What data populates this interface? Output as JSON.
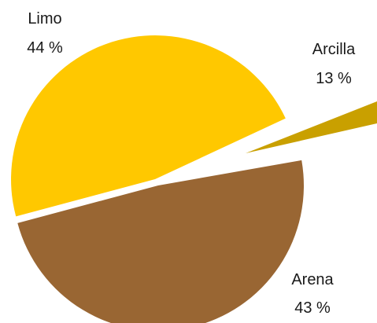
{
  "chart_data": {
    "type": "pie",
    "title": "",
    "categories": [
      "Limo",
      "Arcilla",
      "Arena"
    ],
    "values": [
      44,
      13,
      43
    ],
    "percent_labels": [
      "44 %",
      "13 %",
      "43 %"
    ],
    "colors": [
      "#FFC800",
      "#C9A000",
      "#996633"
    ],
    "exploded": [
      false,
      true,
      false
    ],
    "legend": "none",
    "label_position": "outside"
  }
}
